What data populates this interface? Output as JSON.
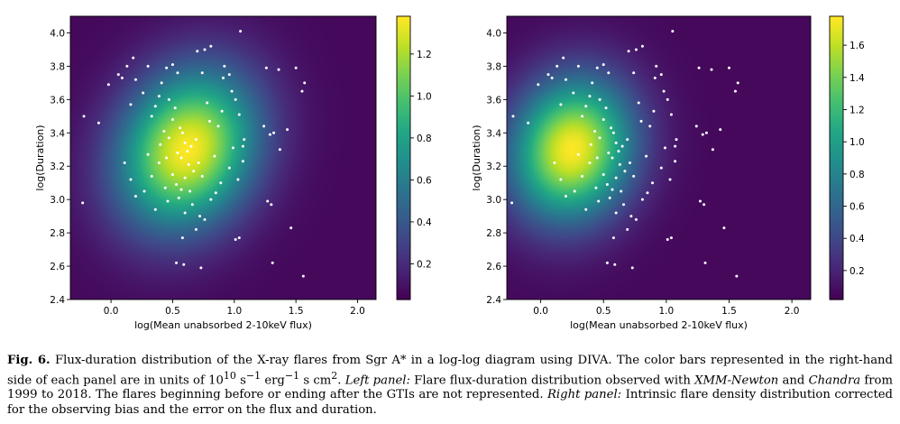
{
  "chart_data": [
    {
      "type": "heatmap",
      "panel": "left",
      "xlabel": "log(Mean unabsorbed 2-10keV flux)",
      "ylabel": "log(Duration)",
      "xlim": [
        -0.33,
        2.15
      ],
      "ylim": [
        2.4,
        4.1
      ],
      "x_ticks": [
        "0.0",
        "0.5",
        "1.0",
        "1.5",
        "2.0"
      ],
      "y_ticks": [
        "2.4",
        "2.6",
        "2.8",
        "3.0",
        "3.2",
        "3.4",
        "3.6",
        "3.8",
        "4.0"
      ],
      "colorbar": {
        "ticks": [
          "0.2",
          "0.4",
          "0.6",
          "0.8",
          "1.0",
          "1.2"
        ],
        "vmin": 0.03,
        "vmax": 1.38,
        "colormap": "viridis"
      },
      "density_peak": [
        0.62,
        3.3
      ],
      "flares": [
        [
          -0.22,
          3.5
        ],
        [
          -0.23,
          2.98
        ],
        [
          -0.1,
          3.46
        ],
        [
          -0.02,
          3.69
        ],
        [
          0.06,
          3.75
        ],
        [
          0.09,
          3.73
        ],
        [
          0.13,
          3.8
        ],
        [
          0.18,
          3.85
        ],
        [
          0.16,
          3.57
        ],
        [
          0.2,
          3.72
        ],
        [
          0.26,
          3.64
        ],
        [
          0.3,
          3.8
        ],
        [
          0.33,
          3.5
        ],
        [
          0.36,
          3.56
        ],
        [
          0.39,
          3.62
        ],
        [
          0.41,
          3.7
        ],
        [
          0.45,
          3.79
        ],
        [
          0.5,
          3.81
        ],
        [
          0.54,
          3.76
        ],
        [
          0.56,
          3.43
        ],
        [
          0.4,
          3.33
        ],
        [
          0.43,
          3.41
        ],
        [
          0.47,
          3.37
        ],
        [
          0.5,
          3.48
        ],
        [
          0.54,
          3.28
        ],
        [
          0.57,
          3.25
        ],
        [
          0.6,
          3.34
        ],
        [
          0.62,
          3.29
        ],
        [
          0.65,
          3.32
        ],
        [
          0.63,
          3.21
        ],
        [
          0.67,
          3.17
        ],
        [
          0.69,
          3.36
        ],
        [
          0.71,
          3.22
        ],
        [
          0.6,
          3.13
        ],
        [
          0.57,
          3.06
        ],
        [
          0.55,
          3.01
        ],
        [
          0.53,
          3.09
        ],
        [
          0.5,
          3.15
        ],
        [
          0.44,
          3.07
        ],
        [
          0.39,
          3.22
        ],
        [
          0.33,
          3.14
        ],
        [
          0.27,
          3.05
        ],
        [
          0.2,
          3.02
        ],
        [
          0.16,
          3.12
        ],
        [
          0.11,
          3.22
        ],
        [
          0.36,
          2.94
        ],
        [
          0.46,
          2.99
        ],
        [
          0.6,
          2.92
        ],
        [
          0.66,
          2.97
        ],
        [
          0.72,
          2.9
        ],
        [
          0.58,
          2.77
        ],
        [
          0.69,
          2.82
        ],
        [
          0.76,
          2.88
        ],
        [
          0.81,
          3.0
        ],
        [
          0.85,
          3.04
        ],
        [
          0.89,
          3.1
        ],
        [
          0.96,
          3.19
        ],
        [
          0.99,
          3.31
        ],
        [
          1.03,
          3.12
        ],
        [
          1.07,
          3.23
        ],
        [
          1.08,
          3.36
        ],
        [
          1.04,
          3.51
        ],
        [
          1.01,
          3.6
        ],
        [
          0.96,
          3.75
        ],
        [
          0.92,
          3.8
        ],
        [
          0.98,
          3.65
        ],
        [
          0.8,
          3.47
        ],
        [
          0.78,
          3.58
        ],
        [
          0.74,
          3.76
        ],
        [
          0.7,
          3.89
        ],
        [
          0.76,
          3.9
        ],
        [
          0.81,
          3.92
        ],
        [
          0.91,
          3.73
        ],
        [
          1.05,
          4.01
        ],
        [
          1.26,
          3.79
        ],
        [
          1.36,
          3.78
        ],
        [
          1.5,
          3.79
        ],
        [
          1.55,
          3.65
        ],
        [
          1.57,
          3.7
        ],
        [
          1.29,
          3.39
        ],
        [
          1.32,
          3.4
        ],
        [
          1.43,
          3.42
        ],
        [
          1.37,
          3.3
        ],
        [
          1.24,
          3.44
        ],
        [
          1.07,
          3.32
        ],
        [
          1.27,
          2.99
        ],
        [
          1.3,
          2.97
        ],
        [
          1.46,
          2.83
        ],
        [
          1.31,
          2.62
        ],
        [
          1.56,
          2.54
        ],
        [
          1.04,
          2.77
        ],
        [
          1.01,
          2.76
        ],
        [
          0.59,
          2.61
        ],
        [
          0.53,
          2.62
        ],
        [
          0.73,
          2.59
        ],
        [
          0.47,
          3.6
        ],
        [
          0.52,
          3.55
        ],
        [
          0.87,
          3.44
        ],
        [
          0.9,
          3.53
        ],
        [
          0.64,
          3.05
        ],
        [
          0.74,
          3.14
        ],
        [
          0.84,
          3.26
        ],
        [
          0.58,
          3.4
        ],
        [
          0.45,
          3.25
        ],
        [
          0.3,
          3.27
        ]
      ]
    },
    {
      "type": "heatmap",
      "panel": "right",
      "xlabel": "log(Mean unabsorbed 2-10keV flux)",
      "ylabel": "log(Duration)",
      "xlim": [
        -0.27,
        2.15
      ],
      "ylim": [
        2.4,
        4.1
      ],
      "x_ticks": [
        "0.0",
        "0.5",
        "1.0",
        "1.5",
        "2.0"
      ],
      "y_ticks": [
        "2.4",
        "2.6",
        "2.8",
        "3.0",
        "3.2",
        "3.4",
        "3.6",
        "3.8",
        "4.0"
      ],
      "colorbar": {
        "ticks": [
          "0.2",
          "0.4",
          "0.6",
          "0.8",
          "1.0",
          "1.2",
          "1.4",
          "1.6"
        ],
        "vmin": 0.02,
        "vmax": 1.78,
        "colormap": "viridis"
      },
      "density_peak": [
        0.25,
        3.3
      ]
    }
  ],
  "caption": {
    "label": "Fig. 6.",
    "s1": "Flux-duration distribution of the X-ray flares from Sgr A* in a log-log diagram using DIVA. The color bars represented in the right-hand side of each panel are in units of 10",
    "unit_exp": "10",
    "unit_s": " s",
    "unit_s_exp": "−1",
    "unit_erg": " erg",
    "unit_erg_exp": "−1",
    "unit_cm": " s cm",
    "unit_cm_exp": "2",
    "s2": ". ",
    "left_label": "Left panel:",
    "s3": " Flare flux-duration distribution observed with ",
    "xmm": "XMM-Newton",
    "and": " and ",
    "chandra": "Chandra",
    "s4": " from 1999 to 2018. The flares beginning before or ending after the GTIs are not represented. ",
    "right_label": "Right panel:",
    "s5": " Intrinsic flare density distribution corrected for the observing bias and the error on the flux and duration."
  }
}
